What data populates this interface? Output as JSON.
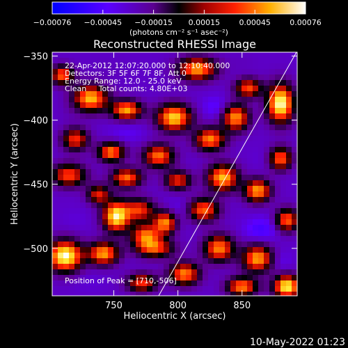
{
  "figure": {
    "title": "Reconstructed RHESSI Image",
    "info_lines": [
      "22-Apr-2012 12:07:20.000 to 12:10:40.000",
      "Detectors: 3F 5F 6F 7F 8F, Att 0",
      "Energy Range: 12.0 - 25.0 keV",
      "Clean     Total counts: 4.80E+03"
    ],
    "peak_text": "Position of Peak = [710,-506]",
    "footer_date": "10-May-2022 01:23"
  },
  "colorbar": {
    "range": [
      -0.00076,
      0.00076
    ],
    "tick_labels": [
      "-0.00076",
      "-0.00045",
      "-0.00015",
      "0.00015",
      "0.00045",
      "0.00076"
    ],
    "unit_label": "(photons cm⁻² s⁻¹ asec⁻²)",
    "colors": [
      "#0000ff",
      "#7a00ff",
      "#000000",
      "#ff0000",
      "#ffcc00",
      "#ffffff"
    ]
  },
  "chart_data": {
    "type": "heatmap",
    "title": "Reconstructed RHESSI Image",
    "xlabel": "Heliocentric X (arcsec)",
    "ylabel": "Heliocentric Y (arcsec)",
    "xlim": [
      702,
      893
    ],
    "ylim": [
      -537,
      -347
    ],
    "x_ticks": [
      750,
      800,
      850
    ],
    "y_ticks": [
      -350,
      -400,
      -450,
      -500
    ],
    "z_range": [
      -0.00076,
      0.00076
    ],
    "peak_position": [
      710,
      -506
    ],
    "limb_line": [
      [
        785,
        -537
      ],
      [
        893,
        -346
      ]
    ],
    "blobs": [
      {
        "x": 712,
        "y": -506,
        "value": 0.00076,
        "sx": 9,
        "sy": 8
      },
      {
        "x": 742,
        "y": -504,
        "value": 0.0005,
        "sx": 8,
        "sy": 6
      },
      {
        "x": 752,
        "y": -475,
        "value": 0.0007,
        "sx": 7,
        "sy": 8
      },
      {
        "x": 775,
        "y": -490,
        "value": 0.0004,
        "sx": 8,
        "sy": 6
      },
      {
        "x": 790,
        "y": -480,
        "value": 0.00045,
        "sx": 6,
        "sy": 6
      },
      {
        "x": 782,
        "y": -500,
        "value": 0.00032,
        "sx": 10,
        "sy": 5
      },
      {
        "x": 715,
        "y": -443,
        "value": 0.00035,
        "sx": 9,
        "sy": 6
      },
      {
        "x": 760,
        "y": -445,
        "value": 0.0004,
        "sx": 8,
        "sy": 5
      },
      {
        "x": 748,
        "y": -425,
        "value": 0.00045,
        "sx": 7,
        "sy": 5
      },
      {
        "x": 785,
        "y": -428,
        "value": 0.00042,
        "sx": 8,
        "sy": 6
      },
      {
        "x": 770,
        "y": -470,
        "value": 0.0003,
        "sx": 8,
        "sy": 6
      },
      {
        "x": 732,
        "y": -383,
        "value": 0.00055,
        "sx": 9,
        "sy": 7
      },
      {
        "x": 760,
        "y": -392,
        "value": 0.0005,
        "sx": 8,
        "sy": 5
      },
      {
        "x": 797,
        "y": -398,
        "value": 0.0006,
        "sx": 9,
        "sy": 7
      },
      {
        "x": 825,
        "y": -415,
        "value": 0.00045,
        "sx": 8,
        "sy": 6
      },
      {
        "x": 845,
        "y": -398,
        "value": 0.00048,
        "sx": 7,
        "sy": 7
      },
      {
        "x": 880,
        "y": -387,
        "value": 0.00076,
        "sx": 7,
        "sy": 10
      },
      {
        "x": 855,
        "y": -375,
        "value": 0.00035,
        "sx": 7,
        "sy": 5
      },
      {
        "x": 815,
        "y": -360,
        "value": 0.0005,
        "sx": 10,
        "sy": 6
      },
      {
        "x": 710,
        "y": -365,
        "value": 0.0004,
        "sx": 6,
        "sy": 5
      },
      {
        "x": 835,
        "y": -445,
        "value": 0.00055,
        "sx": 8,
        "sy": 7
      },
      {
        "x": 862,
        "y": -455,
        "value": 0.0005,
        "sx": 7,
        "sy": 6
      },
      {
        "x": 880,
        "y": -430,
        "value": 0.0004,
        "sx": 6,
        "sy": 6
      },
      {
        "x": 820,
        "y": -470,
        "value": 0.0004,
        "sx": 8,
        "sy": 6
      },
      {
        "x": 832,
        "y": -500,
        "value": 0.00045,
        "sx": 8,
        "sy": 7
      },
      {
        "x": 862,
        "y": -508,
        "value": 0.0005,
        "sx": 8,
        "sy": 7
      },
      {
        "x": 885,
        "y": -478,
        "value": 0.0004,
        "sx": 6,
        "sy": 6
      },
      {
        "x": 885,
        "y": -530,
        "value": 0.0007,
        "sx": 7,
        "sy": 6
      },
      {
        "x": 850,
        "y": -530,
        "value": 0.00045,
        "sx": 8,
        "sy": 5
      },
      {
        "x": 805,
        "y": -520,
        "value": 0.00045,
        "sx": 8,
        "sy": 6
      },
      {
        "x": 772,
        "y": -527,
        "value": 0.0003,
        "sx": 8,
        "sy": 5
      },
      {
        "x": 800,
        "y": -447,
        "value": 0.00028,
        "sx": 7,
        "sy": 5
      },
      {
        "x": 720,
        "y": -415,
        "value": 0.0003,
        "sx": 7,
        "sy": 6
      },
      {
        "x": 738,
        "y": -458,
        "value": 0.00025,
        "sx": 6,
        "sy": 5
      },
      {
        "x": 865,
        "y": -485,
        "value": -0.0005,
        "sx": 9,
        "sy": 6
      },
      {
        "x": 830,
        "y": -390,
        "value": -0.00045,
        "sx": 8,
        "sy": 6
      },
      {
        "x": 868,
        "y": -430,
        "value": -0.00035,
        "sx": 7,
        "sy": 6
      },
      {
        "x": 800,
        "y": -470,
        "value": -0.0004,
        "sx": 9,
        "sy": 6
      },
      {
        "x": 760,
        "y": -410,
        "value": -0.0004,
        "sx": 10,
        "sy": 5
      },
      {
        "x": 720,
        "y": -478,
        "value": -0.00035,
        "sx": 8,
        "sy": 6
      },
      {
        "x": 745,
        "y": -360,
        "value": -0.0003,
        "sx": 10,
        "sy": 5
      },
      {
        "x": 730,
        "y": -525,
        "value": -0.00035,
        "sx": 9,
        "sy": 6
      },
      {
        "x": 850,
        "y": -355,
        "value": -0.0003,
        "sx": 8,
        "sy": 5
      },
      {
        "x": 880,
        "y": -510,
        "value": -0.0004,
        "sx": 6,
        "sy": 6
      },
      {
        "x": 715,
        "y": -395,
        "value": -0.0003,
        "sx": 6,
        "sy": 5
      }
    ],
    "background_value": -0.00032
  }
}
